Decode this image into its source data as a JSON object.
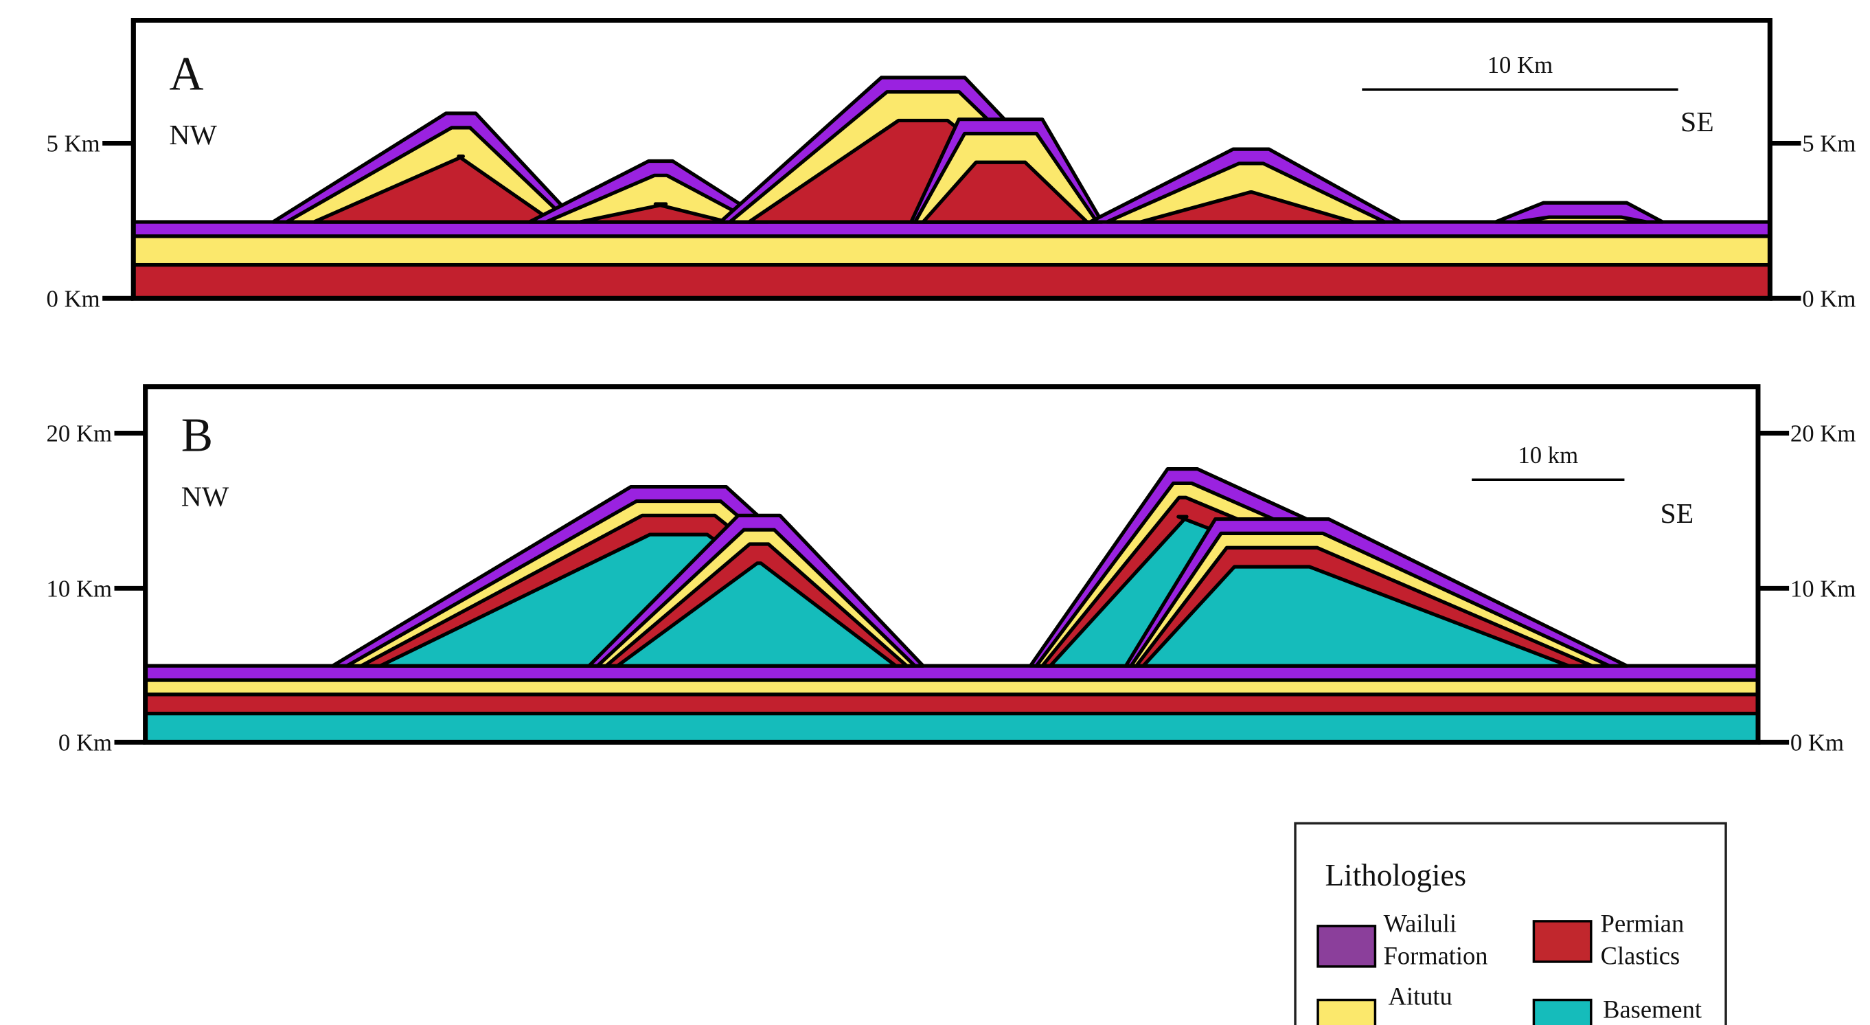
{
  "panels": [
    {
      "label": "A",
      "left": "NW",
      "right": "SE",
      "scale": "10 Km",
      "left_axis": [
        "5 Km",
        "0 Km"
      ],
      "right_axis": [
        "5 Km",
        "0 Km"
      ]
    },
    {
      "label": "B",
      "left": "NW",
      "right": "SE",
      "scale": "10 km",
      "left_axis": [
        "20 Km",
        "10 Km",
        "0 Km"
      ],
      "right_axis": [
        "20 Km",
        "10 Km",
        "0 Km"
      ]
    }
  ],
  "legend": {
    "title": "Lithologies",
    "items": [
      {
        "lines": [
          "Wailuli",
          "Formation"
        ]
      },
      {
        "lines": [
          "Permian",
          "Clastics"
        ]
      },
      {
        "lines": [
          "Aitutu"
        ]
      },
      {
        "lines": [
          "Basement"
        ]
      }
    ]
  }
}
